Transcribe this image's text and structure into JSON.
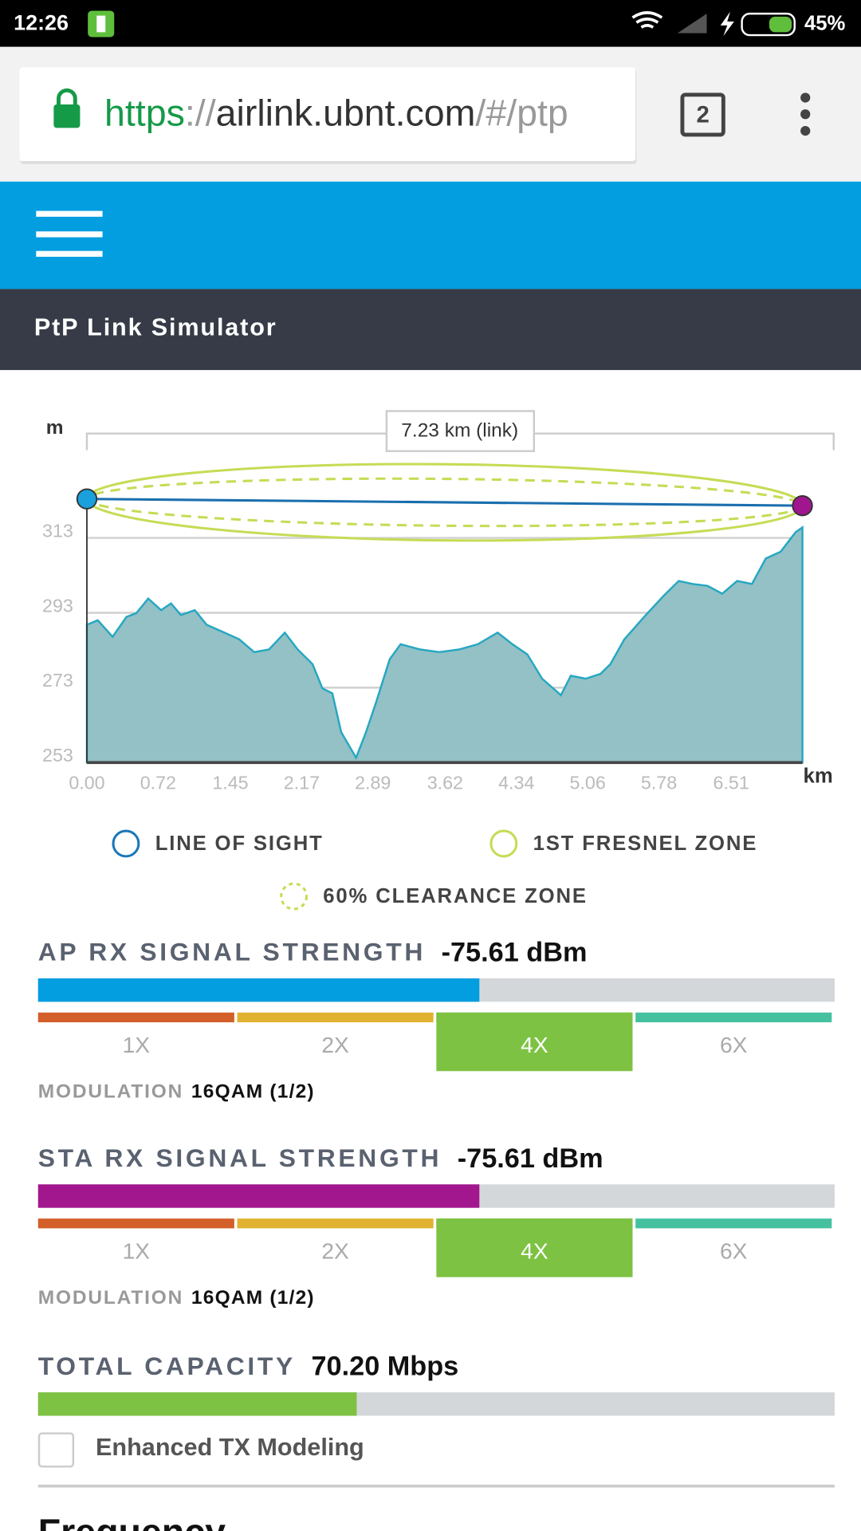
{
  "status_bar": {
    "time": "12:26",
    "battery": "45%"
  },
  "browser": {
    "url": {
      "scheme": "https",
      "separator": "://",
      "host": "airlink.ubnt.com",
      "path": "/#/ptp"
    },
    "tab_count": 2
  },
  "app": {
    "title": "PtP Link Simulator"
  },
  "chart_data": {
    "type": "area",
    "y_unit": "m",
    "x_unit": "km",
    "link_label": "7.23 km (link)",
    "x": [
      0,
      0.11,
      0.26,
      0.4,
      0.5,
      0.62,
      0.75,
      0.85,
      0.95,
      1.09,
      1.21,
      1.39,
      1.54,
      1.69,
      1.84,
      2.0,
      2.13,
      2.28,
      2.38,
      2.48,
      2.57,
      2.72,
      2.82,
      2.92,
      3.06,
      3.17,
      3.37,
      3.56,
      3.76,
      3.95,
      4.15,
      4.3,
      4.45,
      4.6,
      4.79,
      4.89,
      5.04,
      5.19,
      5.29,
      5.43,
      5.63,
      5.83,
      5.98,
      6.12,
      6.27,
      6.42,
      6.57,
      6.72,
      6.86,
      7.01,
      7.16,
      7.23
    ],
    "values": [
      289.8,
      291.0,
      286.6,
      291.9,
      292.9,
      296.8,
      293.7,
      295.5,
      292.4,
      293.7,
      289.8,
      287.7,
      285.9,
      282.5,
      283.2,
      287.7,
      283.2,
      279.3,
      272.8,
      271.5,
      261.1,
      254.3,
      261.1,
      268.9,
      280.6,
      284.6,
      283.2,
      282.5,
      283.2,
      284.6,
      287.7,
      284.6,
      281.9,
      275.4,
      271.0,
      276.2,
      275.4,
      276.7,
      279.3,
      285.9,
      291.9,
      297.6,
      301.5,
      300.7,
      300.2,
      298.1,
      301.5,
      300.7,
      307.5,
      309.3,
      314.5,
      315.8
    ],
    "color": "#93c1c6",
    "line_color": "#26a7c1",
    "line_of_sight": {
      "x": [
        0,
        7.23
      ],
      "values": [
        323.4,
        321.6
      ],
      "colors": [
        "#1aa0dc",
        "#a0168e"
      ],
      "line_color": "#1a6fae"
    },
    "fresnel_color": "#c5dc55",
    "xlim": [
      0,
      7.23
    ],
    "ylim": [
      253,
      335
    ],
    "xticks": [
      {
        "value": 0,
        "label": "0.00"
      },
      0.72,
      1.45,
      2.17,
      2.89,
      3.62,
      4.34,
      5.06,
      5.78,
      6.51
    ],
    "yticks": [
      253,
      273,
      293,
      313
    ],
    "grid": true,
    "legend": [
      "LINE OF SIGHT",
      "1ST FRESNEL ZONE",
      "60% CLEARANCE ZONE"
    ]
  },
  "rate_colors": [
    "#d35f2a",
    "#e0b22f",
    "#7dc242",
    "#45c1a0"
  ],
  "signals": [
    {
      "label": "AP RX SIGNAL STRENGTH",
      "value": -75.61,
      "value_label": "-75.61 dBm",
      "range": [
        -95,
        -60
      ],
      "color": "#039ee0",
      "rates": [
        "1X",
        "2X",
        "4X",
        "6X"
      ],
      "selected_rate": 2,
      "modulation_label": "MODULATION",
      "modulation": "16QAM (1/2)"
    },
    {
      "label": "STA RX SIGNAL STRENGTH",
      "value": -75.61,
      "value_label": "-75.61 dBm",
      "range": [
        -95,
        -60
      ],
      "color": "#a3178e",
      "rates": [
        "1X",
        "2X",
        "4X",
        "6X"
      ],
      "selected_rate": 2,
      "modulation_label": "MODULATION",
      "modulation": "16QAM (1/2)"
    }
  ],
  "capacity": {
    "label": "TOTAL CAPACITY",
    "value": 70.2,
    "value_label": "70.20 Mbps",
    "range": [
      0,
      175.5
    ],
    "color": "#7dc242"
  },
  "options": {
    "enhanced_tx": {
      "label": "Enhanced TX Modeling",
      "checked": false
    }
  },
  "next_section": "Frequency"
}
